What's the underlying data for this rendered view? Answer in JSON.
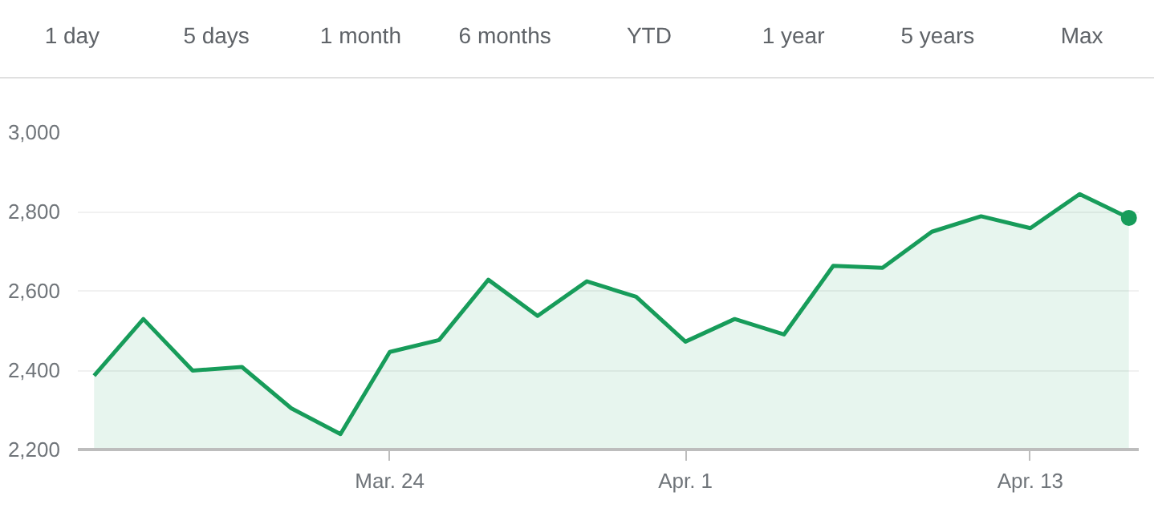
{
  "chart_data": {
    "type": "area",
    "annotations": [
      "1 day",
      "5 days",
      "1 month",
      "6 months",
      "YTD",
      "1 year",
      "5 years",
      "Max"
    ],
    "categories": [
      null,
      null,
      null,
      null,
      null,
      null,
      "Mar. 24",
      null,
      null,
      null,
      null,
      null,
      "Apr. 1",
      null,
      null,
      null,
      null,
      null,
      null,
      "Apr. 13",
      null,
      null
    ],
    "series": [
      {
        "color": "#179c5a",
        "values": [
          2386,
          2529,
          2399,
          2408,
          2304,
          2239,
          2446,
          2476,
          2628,
          2537,
          2624,
          2585,
          2472,
          2529,
          2490,
          2663,
          2658,
          2749,
          2788,
          2758,
          2844,
          2784
        ]
      }
    ],
    "ylim": [
      2200,
      3000
    ],
    "yticks": [
      {
        "value": 2200,
        "label": "2,200"
      },
      {
        "value": 2400,
        "label": "2,400"
      },
      {
        "value": 2600,
        "label": "2,600"
      },
      {
        "value": 2800,
        "label": "2,800"
      },
      {
        "value": 3000,
        "label": "3,000"
      }
    ],
    "grid": "y"
  }
}
